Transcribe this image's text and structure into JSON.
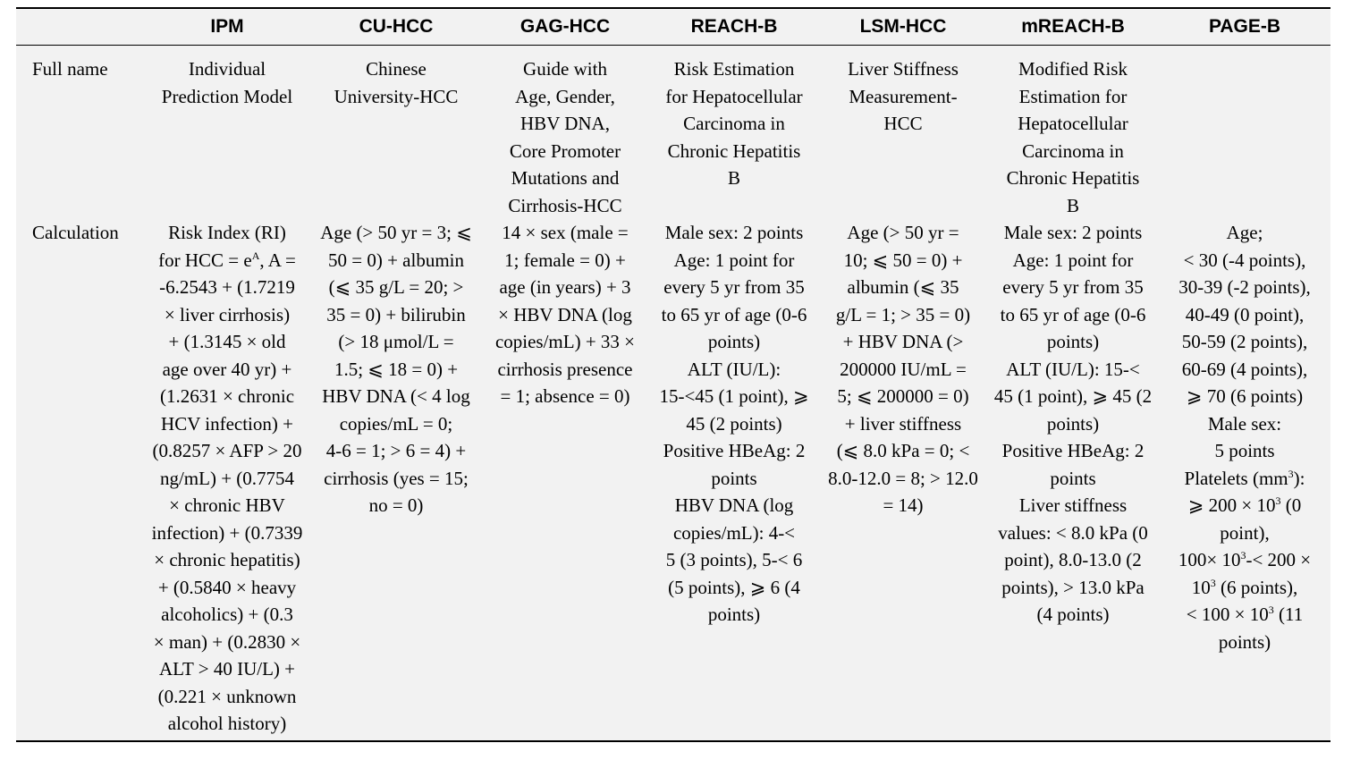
{
  "table": {
    "corner": "",
    "headers": [
      "IPM",
      "CU-HCC",
      "GAG-HCC",
      "REACH-B",
      "LSM-HCC",
      "mREACH-B",
      "PAGE-B"
    ],
    "rows": [
      {
        "label": "Full name",
        "cells": [
          [
            "Individual",
            "Prediction Model"
          ],
          [
            "Chinese",
            "University-HCC"
          ],
          [
            "Guide with",
            "Age, Gender,",
            "HBV DNA,",
            "Core Promoter",
            "Mutations and",
            "Cirrhosis-HCC"
          ],
          [
            "Risk Estimation",
            "for Hepatocellular",
            "Carcinoma in",
            "Chronic Hepatitis",
            "B"
          ],
          [
            "Liver Stiffness",
            "Measurement-",
            "HCC"
          ],
          [
            "Modified Risk",
            "Estimation for",
            "Hepatocellular",
            "Carcinoma in",
            "Chronic Hepatitis",
            "B"
          ],
          []
        ]
      },
      {
        "label": "Calculation",
        "cells": [
          [
            "Risk Index (RI)",
            "for HCC = e^A, A =",
            "-6.2543 + (1.7219",
            "× liver cirrhosis)",
            "+ (1.3145 × old",
            "age over 40 yr) +",
            "(1.2631 × chronic",
            "HCV infection) +",
            "(0.8257 × AFP > 20",
            "ng/mL) + (0.7754",
            "× chronic HBV",
            "infection) + (0.7339",
            "× chronic hepatitis)",
            "+ (0.5840 × heavy",
            "alcoholics) + (0.3",
            "× man) + (0.2830 ×",
            "ALT > 40 IU/L) +",
            "(0.221 × unknown",
            "alcohol history)"
          ],
          [
            "Age (> 50 yr = 3; ⩽",
            "50 = 0) + albumin",
            "(⩽ 35 g/L = 20; >",
            "35 = 0) + bilirubin",
            "(> 18 μmol/L =",
            "1.5; ⩽ 18 = 0) +",
            "HBV DNA (< 4 log",
            "copies/mL = 0;",
            "4-6 = 1; > 6 = 4) +",
            "cirrhosis (yes = 15;",
            "no = 0)"
          ],
          [
            "14 × sex (male =",
            "1; female = 0) +",
            "age (in years) + 3",
            "× HBV DNA (log",
            "copies/mL) + 33 ×",
            "cirrhosis presence",
            "= 1; absence = 0)"
          ],
          [
            "Male sex: 2 points",
            "Age: 1 point for",
            "every 5 yr from 35",
            "to 65 yr of age (0-6",
            "points)",
            "ALT (IU/L):",
            "15-<45 (1 point), ⩾",
            "45 (2 points)",
            "Positive HBeAg: 2",
            "points",
            "HBV DNA (log",
            "copies/mL): 4-<",
            "5 (3 points), 5-< 6",
            "(5 points), ⩾ 6 (4",
            "points)"
          ],
          [
            "Age (> 50 yr =",
            "10; ⩽ 50 = 0) +",
            "albumin (⩽ 35",
            "g/L = 1; > 35 = 0)",
            "+ HBV DNA (>",
            "200000 IU/mL =",
            "5; ⩽ 200000 = 0)",
            "+ liver stiffness",
            "(⩽ 8.0 kPa = 0; <",
            "8.0-12.0 = 8; > 12.0",
            "= 14)"
          ],
          [
            "Male sex: 2 points",
            "Age: 1 point for",
            "every 5 yr from 35",
            "to 65 yr of age (0-6",
            "points)",
            "ALT (IU/L): 15-<",
            "45 (1 point), ⩾ 45 (2",
            "points)",
            "Positive HBeAg: 2",
            "points",
            "Liver stiffness",
            "values: < 8.0 kPa (0",
            "point), 8.0-13.0 (2",
            "points), > 13.0 kPa",
            "(4 points)"
          ],
          [
            "Age;",
            "< 30 (-4 points),",
            "30-39 (-2 points),",
            "40-49 (0 point),",
            "50-59 (2 points),",
            "60-69 (4 points),",
            "⩾ 70 (6 points)",
            "Male sex:",
            "5 points",
            "Platelets (mm^3):",
            "⩾ 200 × 10^3 (0",
            "point),",
            "100× 10^3-< 200 ×",
            "10^3 (6 points),",
            "< 100 × 10^3 (11",
            "points)"
          ]
        ]
      }
    ]
  }
}
